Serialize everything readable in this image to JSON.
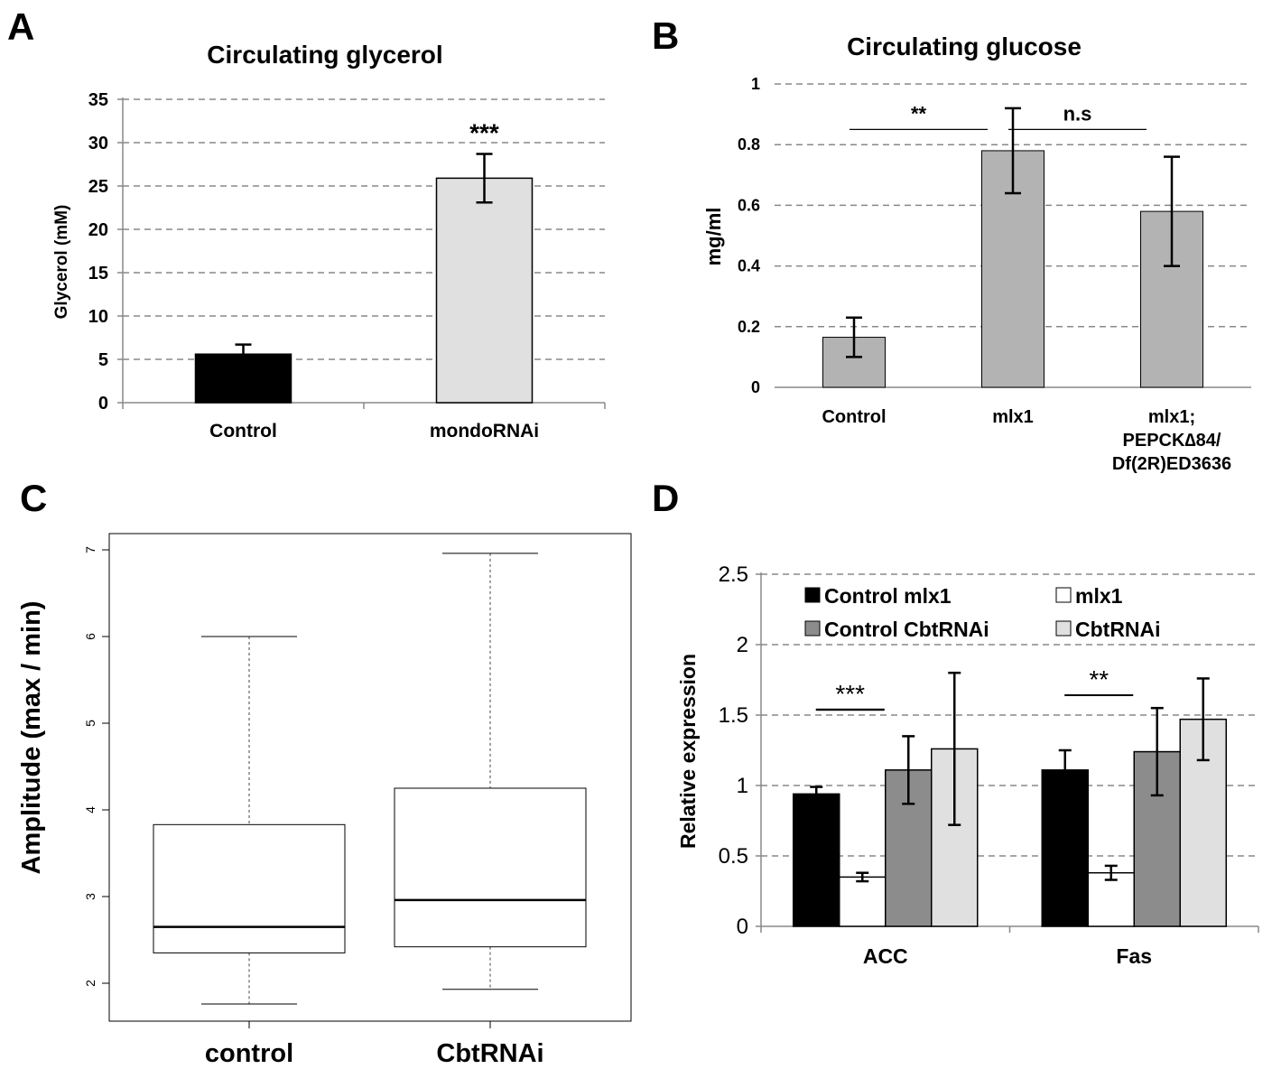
{
  "chart_data": [
    {
      "panel_letter": "A",
      "type": "bar",
      "title": "Circulating glycerol",
      "ylabel": "Glycerol (mM)",
      "xlabel": "",
      "ylim": [
        0,
        35
      ],
      "yticks": [
        "0",
        "5",
        "10",
        "15",
        "20",
        "25",
        "30",
        "35"
      ],
      "grid": true,
      "categories": [
        "Control",
        "mondoRNAi"
      ],
      "values": [
        5.6,
        25.9
      ],
      "errors": [
        1.1,
        2.8
      ],
      "bar_colors": [
        "#000000",
        "#e0e0e0"
      ],
      "annotations": [
        {
          "text": "***",
          "category": "mondoRNAi"
        }
      ]
    },
    {
      "panel_letter": "B",
      "type": "bar",
      "title": "Circulating glucose",
      "ylabel": "mg/ml",
      "xlabel": "",
      "ylim": [
        0,
        1
      ],
      "yticks": [
        "0",
        "0.2",
        "0.4",
        "0.6",
        "0.8",
        "1"
      ],
      "grid": true,
      "categories": [
        "Control",
        "mlx1",
        "mlx1; PEPCK∆84/ Df(2R)ED3636"
      ],
      "category_lines": [
        [
          "Control"
        ],
        [
          "mlx1"
        ],
        [
          "mlx1;",
          "PEPCK∆84/",
          "Df(2R)ED3636"
        ]
      ],
      "values": [
        0.165,
        0.78,
        0.58
      ],
      "errors": [
        0.065,
        0.14,
        0.18
      ],
      "bar_colors": [
        "#b3b3b3",
        "#b3b3b3",
        "#b3b3b3"
      ],
      "annotations": [
        {
          "text": "**",
          "from": "Control",
          "to": "mlx1"
        },
        {
          "text": "n.s",
          "from": "mlx1",
          "to": "mlx1; PEPCK∆84/ Df(2R)ED3636"
        }
      ]
    },
    {
      "panel_letter": "C",
      "type": "boxplot",
      "title": "",
      "ylabel": "Amplitude (max / min)",
      "xlabel": "",
      "ylim": [
        1.8,
        7.2
      ],
      "yticks": [
        "2",
        "3",
        "4",
        "5",
        "6",
        "7"
      ],
      "grid": false,
      "categories": [
        "control",
        "CbtRNAi"
      ],
      "boxes": [
        {
          "name": "control",
          "min": 1.76,
          "q1": 2.35,
          "median": 2.65,
          "q3": 3.83,
          "max": 6.0
        },
        {
          "name": "CbtRNAi",
          "min": 1.93,
          "q1": 2.42,
          "median": 2.96,
          "q3": 4.25,
          "max": 6.96
        }
      ]
    },
    {
      "panel_letter": "D",
      "type": "bar",
      "title": "",
      "ylabel": "Relative expression",
      "xlabel": "",
      "ylim": [
        0,
        2.5
      ],
      "yticks": [
        "0",
        "0.5",
        "1",
        "1.5",
        "2",
        "2.5"
      ],
      "grid": true,
      "legend_position": "top",
      "categories": [
        "ACC",
        "Fas"
      ],
      "series": [
        {
          "name": "Control mlx1",
          "color": "#000000",
          "values": [
            0.94,
            1.11
          ],
          "errors": [
            0.05,
            0.14
          ]
        },
        {
          "name": "mlx1",
          "color": "#ffffff",
          "values": [
            0.35,
            0.38
          ],
          "errors": [
            0.03,
            0.05
          ]
        },
        {
          "name": "Control CbtRNAi",
          "color": "#8c8c8c",
          "values": [
            1.11,
            1.24
          ],
          "errors": [
            0.24,
            0.31
          ]
        },
        {
          "name": "CbtRNAi",
          "color": "#e0e0e0",
          "values": [
            1.26,
            1.47
          ],
          "errors": [
            0.54,
            0.29
          ]
        }
      ],
      "annotations": [
        {
          "text": "***",
          "category": "ACC"
        },
        {
          "text": "**",
          "category": "Fas"
        }
      ]
    }
  ]
}
